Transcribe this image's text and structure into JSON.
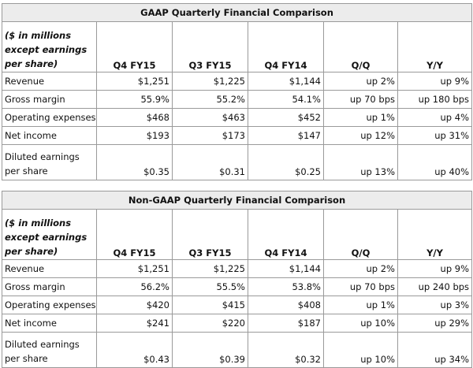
{
  "tables": [
    {
      "title": "GAAP Quarterly Financial Comparison",
      "header_label": "($ in millions except earnings per share)",
      "columns": [
        "Q4 FY15",
        "Q3 FY15",
        "Q4 FY14",
        "Q/Q",
        "Y/Y"
      ],
      "rows": [
        {
          "label": "Revenue",
          "values": [
            "$1,251",
            "$1,225",
            "$1,144",
            "up 2%",
            "up 9%"
          ]
        },
        {
          "label": "Gross margin",
          "values": [
            "55.9%",
            "55.2%",
            "54.1%",
            "up 70 bps",
            "up 180 bps"
          ]
        },
        {
          "label": "Operating expenses",
          "values": [
            "$468",
            "$463",
            "$452",
            "up 1%",
            "up 4%"
          ]
        },
        {
          "label": "Net income",
          "values": [
            "$193",
            "$173",
            "$147",
            "up 12%",
            "up 31%"
          ]
        },
        {
          "label": "Diluted earnings per share",
          "values": [
            "$0.35",
            "$0.31",
            "$0.25",
            "up 13%",
            "up 40%"
          ]
        }
      ]
    },
    {
      "title": "Non-GAAP Quarterly Financial Comparison",
      "header_label": "($ in millions except earnings per share)",
      "columns": [
        "Q4 FY15",
        "Q3 FY15",
        "Q4 FY14",
        "Q/Q",
        "Y/Y"
      ],
      "rows": [
        {
          "label": "Revenue",
          "values": [
            "$1,251",
            "$1,225",
            "$1,144",
            "up 2%",
            "up 9%"
          ]
        },
        {
          "label": "Gross margin",
          "values": [
            "56.2%",
            "55.5%",
            "53.8%",
            "up 70 bps",
            "up 240 bps"
          ]
        },
        {
          "label": "Operating expenses",
          "values": [
            "$420",
            "$415",
            "$408",
            "up 1%",
            "up 3%"
          ]
        },
        {
          "label": "Net income",
          "values": [
            "$241",
            "$220",
            "$187",
            "up 10%",
            "up 29%"
          ]
        },
        {
          "label": "Diluted earnings per share",
          "values": [
            "$0.43",
            "$0.39",
            "$0.32",
            "up 10%",
            "up 34%"
          ]
        }
      ]
    }
  ]
}
